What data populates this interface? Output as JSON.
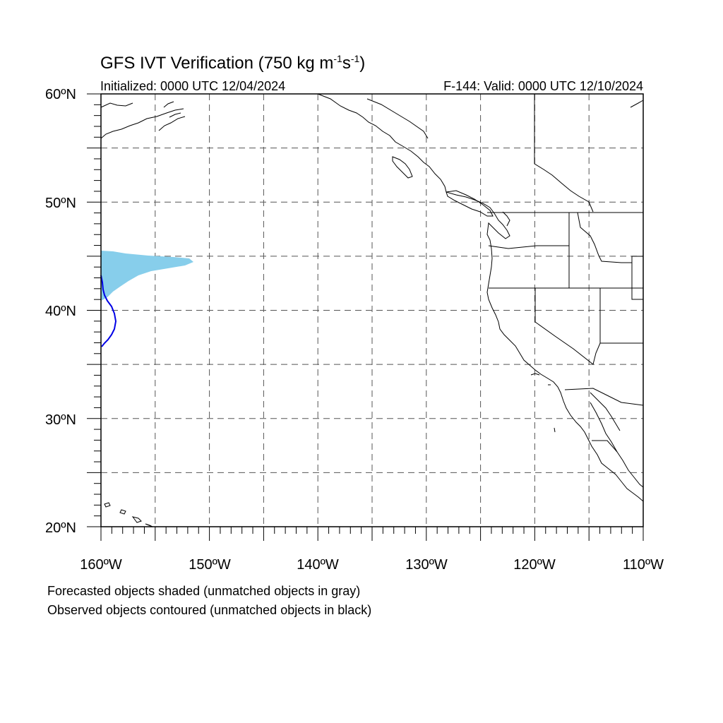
{
  "figure": {
    "title_main": "GFS IVT Verification (750 kg m",
    "title_sup1": "-1",
    "title_mid": "s",
    "title_sup2": "-1",
    "title_end": ")",
    "init_label": "Initialized: 0000 UTC 12/04/2024",
    "valid_label": "F-144: Valid: 0000 UTC 12/10/2024"
  },
  "axes": {
    "lat_labels": [
      "60ºN",
      "50ºN",
      "40ºN",
      "30ºN",
      "20ºN"
    ],
    "lon_labels": [
      "160ºW",
      "150ºW",
      "140ºW",
      "130ºW",
      "120ºW",
      "110ºW"
    ],
    "lat_range": [
      20,
      60
    ],
    "lon_range": [
      -160,
      -110
    ],
    "grid": "dashed every 5 degrees"
  },
  "legend": {
    "forecast_note": "Forecasted objects shaded (unmatched objects in gray)",
    "observed_note": "Observed objects contoured (unmatched objects in black)"
  },
  "colors": {
    "forecast_fill": "#87CEEB",
    "observed_contour": "#0000E6",
    "coastline": "#000000",
    "grid": "#555555"
  }
}
